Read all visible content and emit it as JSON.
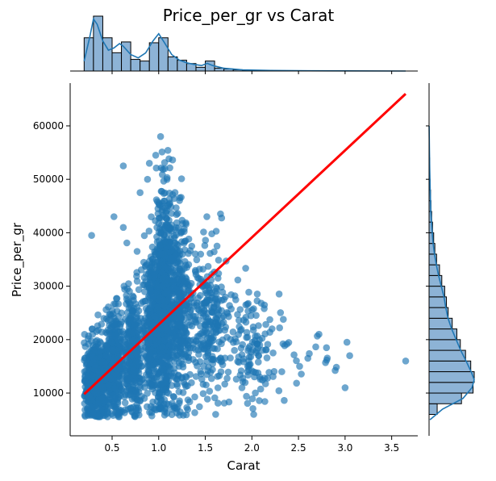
{
  "chart_data": {
    "type": "scatter",
    "title": "Price_per_gr vs Carat",
    "xlabel": "Carat",
    "ylabel": "Price_per_gr",
    "xlim": [
      0.05,
      3.78
    ],
    "ylim": [
      2000,
      68000
    ],
    "x_ticks": [
      {
        "value": 0.5,
        "label": "0.5"
      },
      {
        "value": 1.0,
        "label": "1.0"
      },
      {
        "value": 1.5,
        "label": "1.5"
      },
      {
        "value": 2.0,
        "label": "2.0"
      },
      {
        "value": 2.5,
        "label": "2.5"
      },
      {
        "value": 3.0,
        "label": "3.0"
      },
      {
        "value": 3.5,
        "label": "3.5"
      }
    ],
    "y_ticks": [
      {
        "value": 10000,
        "label": "10000"
      },
      {
        "value": 20000,
        "label": "20000"
      },
      {
        "value": 30000,
        "label": "30000"
      },
      {
        "value": 40000,
        "label": "40000"
      },
      {
        "value": 50000,
        "label": "50000"
      },
      {
        "value": 60000,
        "label": "60000"
      }
    ],
    "grid": false,
    "colors": {
      "points": "#1f77b4",
      "regression": "#ff0000",
      "hist_fill": "#8db3d6",
      "kde": "#1f77b4"
    },
    "clusters": [
      {
        "x_center": 0.33,
        "x_spread": 0.07,
        "y_center": 12000,
        "y_spread": 4000,
        "count": 550
      },
      {
        "x_center": 0.52,
        "x_spread": 0.05,
        "y_center": 16000,
        "y_spread": 5000,
        "count": 350
      },
      {
        "x_center": 0.72,
        "x_spread": 0.04,
        "y_center": 17000,
        "y_spread": 6000,
        "count": 320
      },
      {
        "x_center": 0.92,
        "x_spread": 0.05,
        "y_center": 22000,
        "y_spread": 7000,
        "count": 320
      },
      {
        "x_center": 1.05,
        "x_spread": 0.05,
        "y_center": 27000,
        "y_spread": 10000,
        "count": 700
      },
      {
        "x_center": 1.22,
        "x_spread": 0.07,
        "y_center": 25000,
        "y_spread": 9000,
        "count": 400
      },
      {
        "x_center": 1.55,
        "x_spread": 0.1,
        "y_center": 24000,
        "y_spread": 7000,
        "count": 250
      },
      {
        "x_center": 2.02,
        "x_spread": 0.12,
        "y_center": 19000,
        "y_spread": 5000,
        "count": 120
      },
      {
        "x_center": 2.5,
        "x_spread": 0.25,
        "y_center": 16000,
        "y_spread": 3000,
        "count": 25
      }
    ],
    "outliers": [
      {
        "x": 3.65,
        "y": 16000
      },
      {
        "x": 3.02,
        "y": 19500
      },
      {
        "x": 3.0,
        "y": 11000
      },
      {
        "x": 3.05,
        "y": 17000
      },
      {
        "x": 2.8,
        "y": 18500
      },
      {
        "x": 2.72,
        "y": 21000
      },
      {
        "x": 2.6,
        "y": 16500
      },
      {
        "x": 2.02,
        "y": 6000
      },
      {
        "x": 0.28,
        "y": 39500
      },
      {
        "x": 0.62,
        "y": 52500
      },
      {
        "x": 0.52,
        "y": 43000
      },
      {
        "x": 0.62,
        "y": 41000
      },
      {
        "x": 0.8,
        "y": 47500
      },
      {
        "x": 0.88,
        "y": 50000
      },
      {
        "x": 0.9,
        "y": 53000
      },
      {
        "x": 1.02,
        "y": 58000
      }
    ],
    "regression_line": {
      "x": [
        0.2,
        3.65
      ],
      "y": [
        9800,
        66000
      ]
    },
    "top_histogram": {
      "bins": [
        0.2,
        0.3,
        0.4,
        0.5,
        0.6,
        0.7,
        0.8,
        0.9,
        1.0,
        1.1,
        1.2,
        1.3,
        1.4,
        1.5,
        1.6,
        1.7,
        1.8,
        1.9,
        2.0
      ],
      "counts": [
        4000,
        6600,
        4000,
        2200,
        3500,
        1400,
        1200,
        3400,
        4000,
        1700,
        1300,
        900,
        450,
        1200,
        350,
        250,
        150,
        80
      ],
      "kde": [
        [
          0.2,
          0.18
        ],
        [
          0.26,
          0.62
        ],
        [
          0.3,
          0.95
        ],
        [
          0.34,
          0.85
        ],
        [
          0.4,
          0.55
        ],
        [
          0.46,
          0.38
        ],
        [
          0.52,
          0.42
        ],
        [
          0.58,
          0.5
        ],
        [
          0.62,
          0.45
        ],
        [
          0.7,
          0.3
        ],
        [
          0.78,
          0.24
        ],
        [
          0.86,
          0.33
        ],
        [
          0.94,
          0.55
        ],
        [
          1.0,
          0.68
        ],
        [
          1.06,
          0.52
        ],
        [
          1.14,
          0.3
        ],
        [
          1.22,
          0.2
        ],
        [
          1.3,
          0.15
        ],
        [
          1.38,
          0.12
        ],
        [
          1.46,
          0.1
        ],
        [
          1.52,
          0.14
        ],
        [
          1.58,
          0.1
        ],
        [
          1.7,
          0.05
        ],
        [
          1.9,
          0.02
        ],
        [
          2.2,
          0.01
        ],
        [
          2.6,
          0.005
        ],
        [
          3.0,
          0.003
        ],
        [
          3.65,
          0.0
        ]
      ]
    },
    "right_histogram": {
      "bins": [
        6000,
        8000,
        10000,
        12000,
        14000,
        16000,
        18000,
        20000,
        22000,
        24000,
        26000,
        28000,
        30000,
        32000,
        34000,
        36000,
        38000,
        40000,
        42000,
        44000,
        46000,
        48000,
        50000,
        52000,
        54000,
        56000,
        58000
      ],
      "counts": [
        1400,
        5600,
        7600,
        7800,
        7200,
        6300,
        5400,
        4800,
        4000,
        3300,
        3000,
        2700,
        2200,
        1800,
        1300,
        1000,
        800,
        600,
        450,
        320,
        260,
        180,
        140,
        100,
        60,
        40
      ],
      "kde": [
        [
          5000,
          0.02
        ],
        [
          7000,
          0.3
        ],
        [
          9000,
          0.75
        ],
        [
          11000,
          0.95
        ],
        [
          12500,
          1.0
        ],
        [
          14000,
          0.93
        ],
        [
          16000,
          0.82
        ],
        [
          18000,
          0.7
        ],
        [
          20000,
          0.6
        ],
        [
          22000,
          0.5
        ],
        [
          24000,
          0.42
        ],
        [
          26000,
          0.37
        ],
        [
          28000,
          0.33
        ],
        [
          30000,
          0.27
        ],
        [
          32000,
          0.21
        ],
        [
          34000,
          0.16
        ],
        [
          36000,
          0.12
        ],
        [
          38000,
          0.09
        ],
        [
          40000,
          0.07
        ],
        [
          44000,
          0.04
        ],
        [
          48000,
          0.025
        ],
        [
          52000,
          0.015
        ],
        [
          56000,
          0.008
        ],
        [
          60000,
          0.002
        ]
      ]
    }
  }
}
